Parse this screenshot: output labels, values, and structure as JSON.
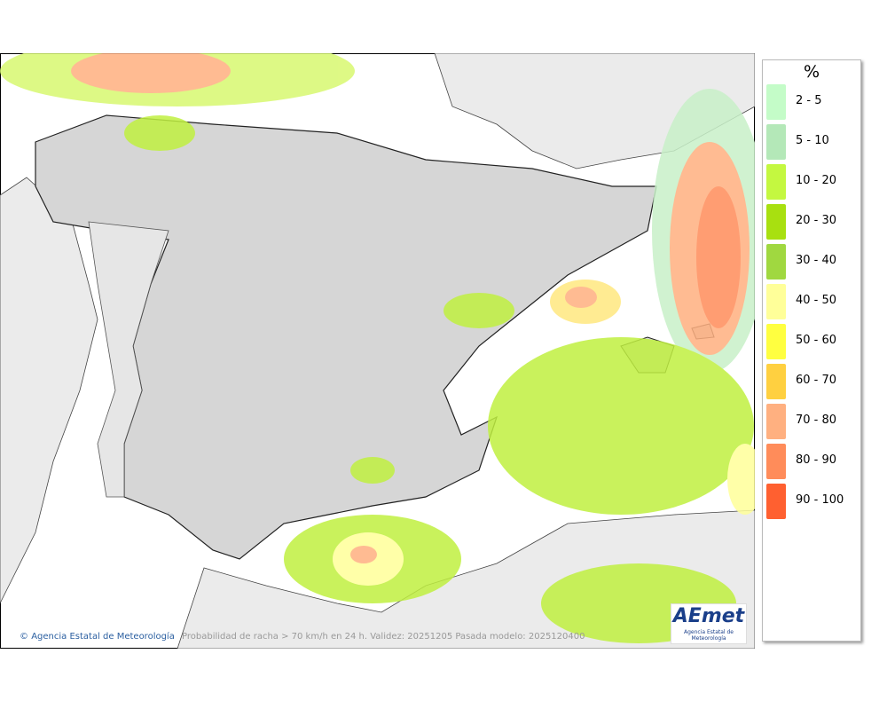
{
  "legend": {
    "title": "%",
    "items": [
      {
        "label": "2 - 5",
        "color": "#c4fcc8"
      },
      {
        "label": "5 - 10",
        "color": "#b4e8b8"
      },
      {
        "label": "10 - 20",
        "color": "#c4f840"
      },
      {
        "label": "20 - 30",
        "color": "#a8e010"
      },
      {
        "label": "30 - 40",
        "color": "#a0d840"
      },
      {
        "label": "40 - 50",
        "color": "#ffff99"
      },
      {
        "label": "50 - 60",
        "color": "#ffff40"
      },
      {
        "label": "60 - 70",
        "color": "#ffd040"
      },
      {
        "label": "70 - 80",
        "color": "#ffb080"
      },
      {
        "label": "80 - 90",
        "color": "#ff8c5a"
      },
      {
        "label": "90 - 100",
        "color": "#ff6030"
      }
    ]
  },
  "footer": {
    "credit": "Agencia Estatal de Meteorología",
    "caption": "Probabilidad de racha > 70 km/h en 24 h. Validez: 20251205 Pasada modelo: 2025120400"
  },
  "logo": {
    "name": "AEmet",
    "subtitle": "Agencia Estatal de Meteorología"
  }
}
